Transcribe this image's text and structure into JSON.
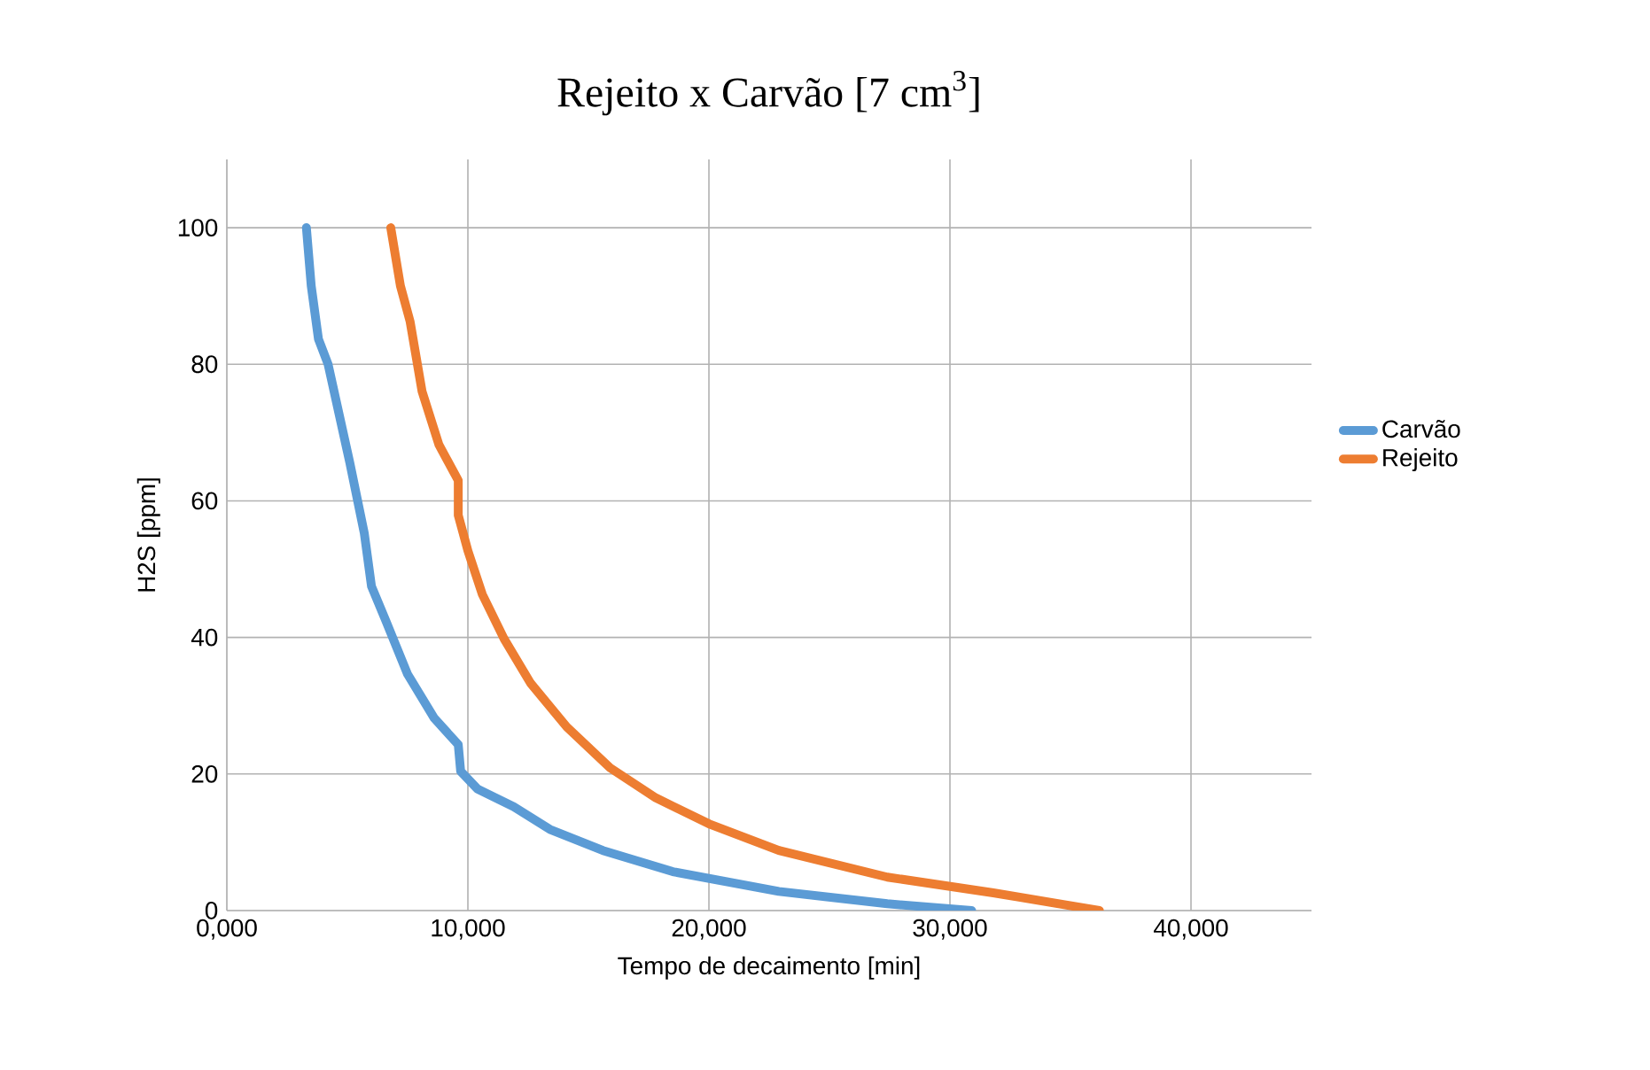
{
  "chart_data": {
    "type": "line",
    "title": "Rejeito x Carvão [7 cm$^{3}$]",
    "xlabel": "Tempo de decaimento [min]",
    "ylabel": "H2S [ppm]",
    "xlim": [
      0,
      45000
    ],
    "xticks": [
      {
        "value": 0,
        "label": "0,000"
      },
      {
        "value": 10000,
        "label": "10,000"
      },
      {
        "value": 20000,
        "label": "20,000"
      },
      {
        "value": 30000,
        "label": "30,000"
      },
      {
        "value": 40000,
        "label": "40,000"
      }
    ],
    "ylim": [
      0,
      110
    ],
    "yticks": [
      0,
      20,
      40,
      60,
      80,
      100
    ],
    "grid": true,
    "legend": "right",
    "marker": "none",
    "line_style": "solid",
    "series": [
      {
        "name": "Carvão",
        "color": "#5b9bd5",
        "x": [
          3300,
          3500,
          3800,
          4200,
          5100,
          5700,
          6000,
          6600,
          7500,
          8600,
          9600,
          9700,
          10400,
          11900,
          13400,
          15600,
          18500,
          22900,
          27400,
          30900
        ],
        "values": [
          100,
          91.5,
          83.7,
          80,
          65.6,
          55.3,
          47.5,
          42.4,
          34.6,
          28.2,
          24.3,
          20.4,
          17.8,
          15.2,
          11.9,
          8.8,
          5.7,
          2.8,
          1,
          0
        ]
      },
      {
        "name": "Rejeito",
        "color": "#ed7d31",
        "x": [
          6800,
          7200,
          7600,
          8100,
          8800,
          9600,
          9600,
          10000,
          10600,
          11500,
          12600,
          14100,
          15900,
          17800,
          20000,
          22900,
          27400,
          31800,
          36200
        ],
        "values": [
          100,
          91.5,
          86.3,
          76,
          68.2,
          63,
          57.9,
          52.7,
          46.3,
          39.8,
          33.3,
          26.9,
          20.9,
          16.5,
          12.7,
          8.8,
          4.9,
          2.6,
          0
        ]
      }
    ]
  }
}
